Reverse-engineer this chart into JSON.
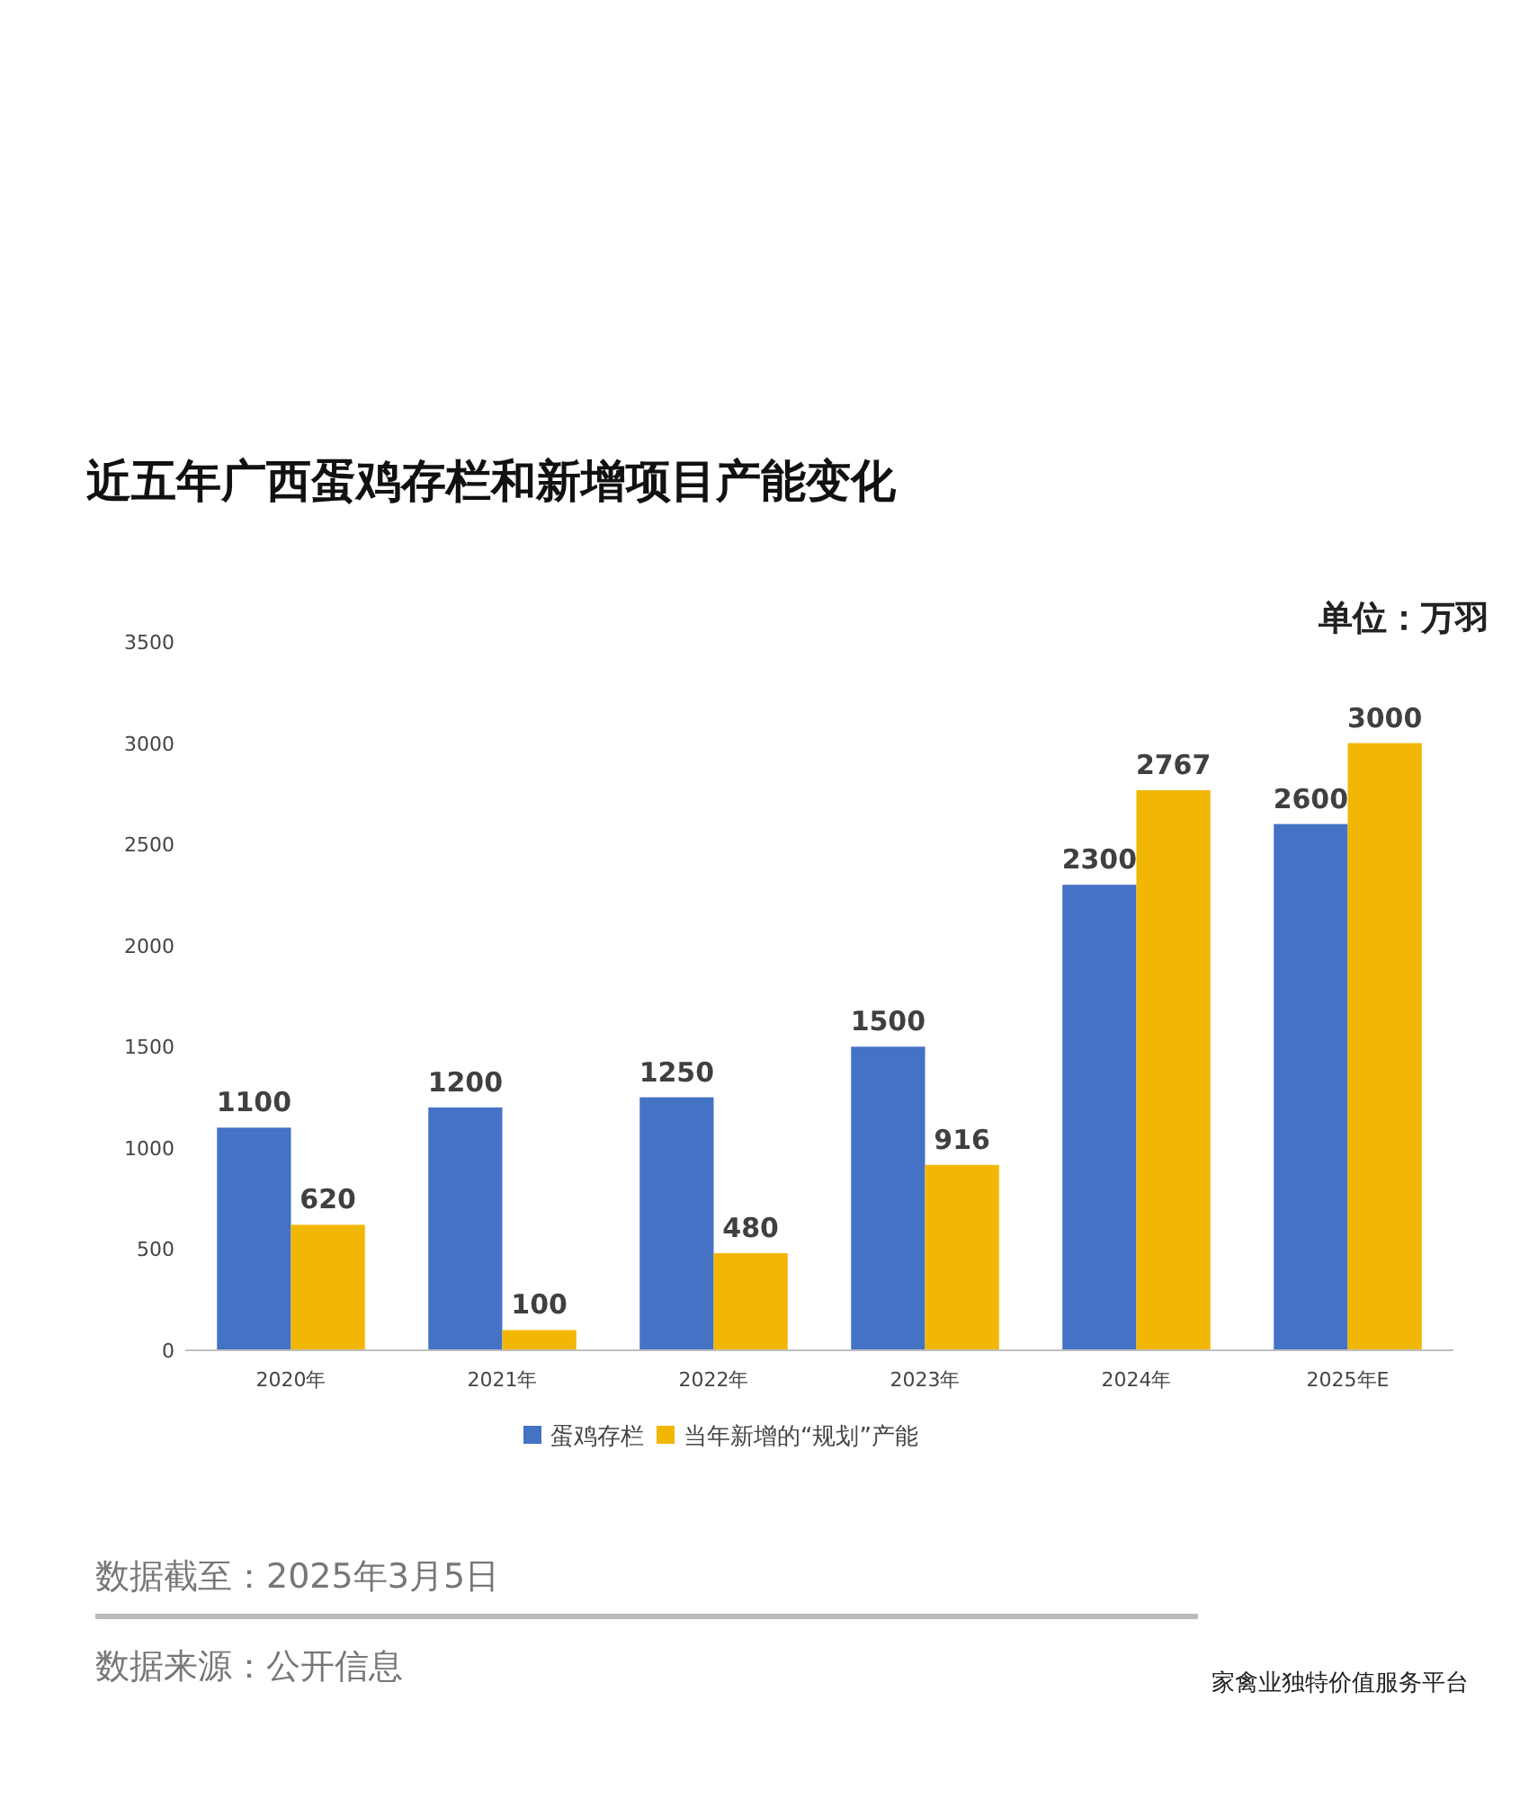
{
  "chart_data": {
    "type": "bar",
    "title": "近五年广西蛋鸡存栏和新增项目产能变化",
    "ylabel": "单位：万羽",
    "categories": [
      "2020年",
      "2021年",
      "2022年",
      "2023年",
      "2024年",
      "2025年E"
    ],
    "series": [
      {
        "name": "蛋鸡存栏",
        "color": "#4472c4",
        "values": [
          1100,
          1200,
          1250,
          1500,
          2300,
          2600
        ]
      },
      {
        "name": "当年新增的“规划”产能",
        "color": "#f2b705",
        "values": [
          620,
          100,
          480,
          916,
          2767,
          3000
        ]
      }
    ],
    "ylim": [
      0,
      3500
    ],
    "yticks": [
      0,
      500,
      1000,
      1500,
      2000,
      2500,
      3000,
      3500
    ],
    "grid": false,
    "legend": "bottom",
    "data_labels": true,
    "annotations": [
      "数据截至：2025年3月5日",
      "数据来源：公开信息",
      "家禽业独特价值服务平台"
    ]
  }
}
